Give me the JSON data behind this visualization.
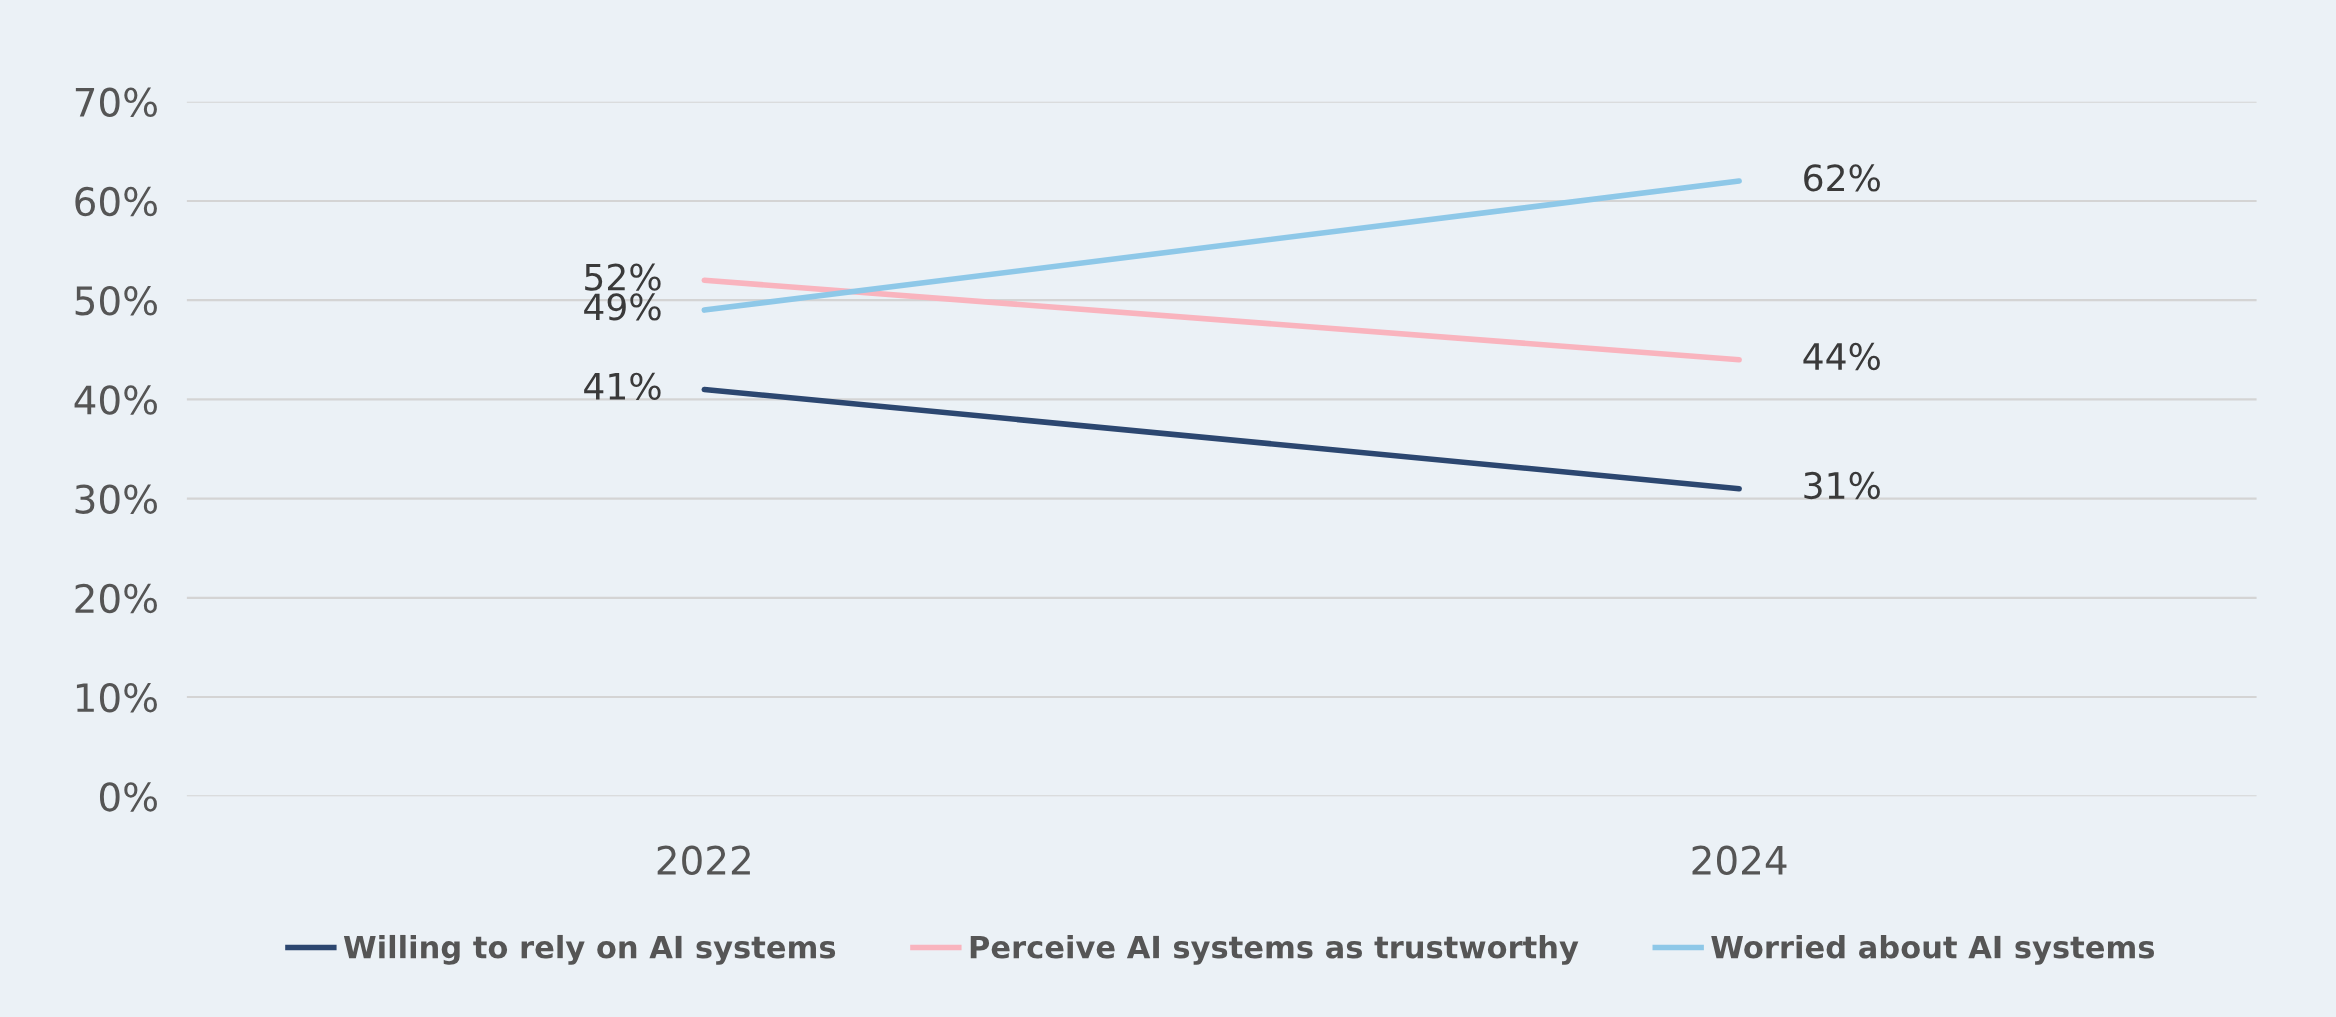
{
  "chart_data": {
    "type": "line",
    "categories": [
      "2022",
      "2024"
    ],
    "series": [
      {
        "name": "Willing to rely on AI systems",
        "color": "#2c4770",
        "values": [
          41,
          31
        ],
        "value_labels": [
          "41%",
          "31%"
        ]
      },
      {
        "name": "Perceive AI systems as trustworthy",
        "color": "#f9b4be",
        "values": [
          52,
          44
        ],
        "value_labels": [
          "52%",
          "44%"
        ]
      },
      {
        "name": "Worried about AI systems",
        "color": "#8ec8e8",
        "values": [
          49,
          62
        ],
        "value_labels": [
          "49%",
          "62%"
        ]
      }
    ],
    "ylim": [
      0,
      70
    ],
    "yticks": [
      {
        "value": 0,
        "label": "0%"
      },
      {
        "value": 10,
        "label": "10%"
      },
      {
        "value": 20,
        "label": "20%"
      },
      {
        "value": 30,
        "label": "30%"
      },
      {
        "value": 40,
        "label": "40%"
      },
      {
        "value": 50,
        "label": "50%"
      },
      {
        "value": 60,
        "label": "60%"
      },
      {
        "value": 70,
        "label": "70%"
      }
    ],
    "grid": "y",
    "legend": "bottom",
    "marker": "none",
    "line_style": "solid"
  }
}
